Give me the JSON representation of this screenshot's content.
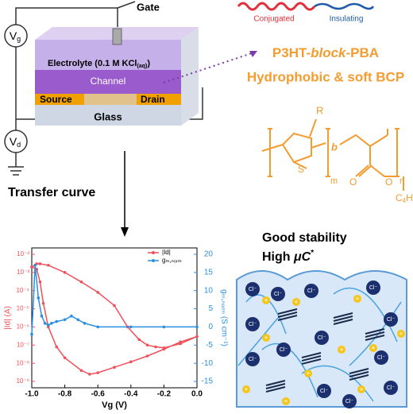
{
  "device": {
    "gate": "Gate",
    "vg": {
      "main": "V",
      "sub": "g"
    },
    "vd": {
      "main": "V",
      "sub": "d"
    },
    "electrolyte": [
      "Electrolyte (0.1 M KCl",
      "(aq)",
      ")"
    ],
    "channel": "Channel",
    "source": "Source",
    "drain": "Drain",
    "glass": "Glass"
  },
  "polymer": {
    "conjugated": "Conjugated",
    "insulating": "Insulating",
    "title": [
      "P3HT-",
      "block",
      "-PBA"
    ],
    "subtitle": "Hydrophobic & soft BCP",
    "structure": {
      "r": "R",
      "s": "S",
      "b": "b",
      "m": "m",
      "n": "n",
      "o1": "O",
      "o2": "O",
      "c4h9": [
        "C",
        "4",
        "H",
        "9"
      ]
    }
  },
  "arrow_label": "Transfer curve",
  "chart_data": {
    "type": "line",
    "xlabel": "Vg (V)",
    "ylabel": "|Id| (A)",
    "y2label": "gₘ,ₙₒᵣₘ (S cm⁻¹)",
    "xlim": [
      -1.0,
      0.0
    ],
    "xticks": [
      {
        "value": -1.0,
        "label": "-1.0"
      },
      -0.8,
      -0.6,
      -0.4,
      -0.2,
      {
        "value": 0.0,
        "label": "0.0"
      }
    ],
    "ylim": [
      1e-09,
      0.01
    ],
    "ylog": true,
    "yticks": [
      {
        "value": 0.01,
        "label": "10⁻²"
      },
      {
        "value": 0.001,
        "label": "10⁻³"
      },
      {
        "value": 0.0001,
        "label": "10⁻⁴"
      },
      {
        "value": 1e-05,
        "label": "10⁻⁵"
      },
      {
        "value": 1e-06,
        "label": "10⁻⁶"
      },
      {
        "value": 1e-07,
        "label": "10⁻⁷"
      },
      {
        "value": 1e-08,
        "label": "10⁻⁸"
      },
      {
        "value": 1e-09,
        "label": "10⁻⁹"
      }
    ],
    "y2lim": [
      -15,
      20
    ],
    "y2ticks": [
      20,
      15,
      10,
      5,
      0,
      -5,
      -10,
      -15
    ],
    "legend": "upper right",
    "series": [
      {
        "name": "|Id|",
        "color": "#f0505a",
        "x": [
          -1.0,
          -0.97,
          -0.95,
          -0.9,
          -0.8,
          -0.7,
          -0.6,
          -0.5,
          -0.42,
          -0.35,
          -0.3,
          -0.25,
          -0.2,
          -0.1,
          0.0,
          -0.1,
          -0.2,
          -0.3,
          -0.4,
          -0.5,
          -0.6,
          -0.65,
          -0.7,
          -0.8,
          -0.85,
          -0.9,
          -0.93,
          -0.95,
          -0.97,
          -1.0
        ],
        "values": [
          0.002,
          0.003,
          0.003,
          0.0025,
          0.001,
          0.0003,
          8e-05,
          1.5e-05,
          1e-06,
          2e-07,
          1e-07,
          8e-08,
          7e-08,
          1.2e-07,
          3e-07,
          1.5e-07,
          6e-08,
          2.5e-08,
          1.2e-08,
          6e-09,
          3e-09,
          2.5e-09,
          4e-09,
          2e-08,
          8e-08,
          1e-06,
          2e-05,
          0.0003,
          0.0015,
          0.002
        ]
      },
      {
        "name": "gₘ,ₙₒᵣₘ",
        "color": "#2a8fe0",
        "axis": "y2",
        "x": [
          -1.0,
          -0.98,
          -0.96,
          -0.94,
          -0.92,
          -0.9,
          -0.88,
          -0.85,
          -0.8,
          -0.76,
          -0.72,
          -0.68,
          -0.6,
          -0.4,
          -0.2,
          0.0
        ],
        "values": [
          -2,
          17,
          8,
          3,
          1,
          0.5,
          1,
          1.5,
          2,
          3,
          2,
          1,
          0,
          0,
          0,
          0
        ]
      }
    ]
  },
  "mixed": {
    "line1": "Good stability",
    "line2": [
      "High ",
      "μC",
      "*"
    ],
    "anion": "Cl⁻",
    "cation": "+"
  }
}
